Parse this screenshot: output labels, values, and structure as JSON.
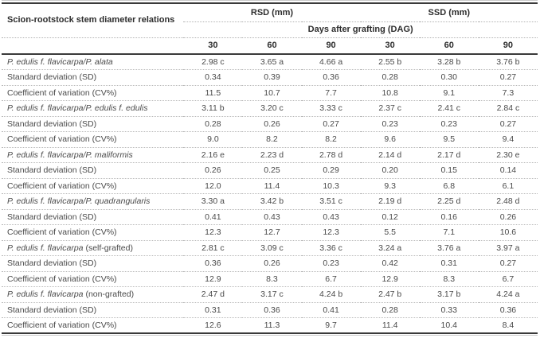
{
  "table": {
    "corner_header": "Scion-rootstock stem diameter relations",
    "group_headers": [
      "RSD (mm)",
      "SSD (mm)"
    ],
    "subheader": "Days after grafting (DAG)",
    "day_columns": [
      "30",
      "60",
      "90",
      "30",
      "60",
      "90"
    ],
    "rows": [
      {
        "label": "P. edulis f. flavicarpa/P. alata",
        "suffix": "",
        "italic": true,
        "cells": [
          "2.98 c",
          "3.65 a",
          "4.66 a",
          "2.55 b",
          "3.28 b",
          "3.76 b"
        ]
      },
      {
        "label": "Standard deviation (SD)",
        "suffix": "",
        "italic": false,
        "cells": [
          "0.34",
          "0.39",
          "0.36",
          "0.28",
          "0.30",
          "0.27"
        ]
      },
      {
        "label": "Coefficient of variation (CV%)",
        "suffix": "",
        "italic": false,
        "cells": [
          "11.5",
          "10.7",
          "7.7",
          "10.8",
          "9.1",
          "7.3"
        ]
      },
      {
        "label": "P. edulis f. flavicarpa/P. edulis f. edulis",
        "suffix": "",
        "italic": true,
        "cells": [
          "3.11 b",
          "3.20 c",
          "3.33 c",
          "2.37 c",
          "2.41 c",
          "2.84 c"
        ]
      },
      {
        "label": "Standard deviation (SD)",
        "suffix": "",
        "italic": false,
        "cells": [
          "0.28",
          "0.26",
          "0.27",
          "0.23",
          "0.23",
          "0.27"
        ]
      },
      {
        "label": "Coefficient of variation (CV%)",
        "suffix": "",
        "italic": false,
        "cells": [
          "9.0",
          "8.2",
          "8.2",
          "9.6",
          "9.5",
          "9.4"
        ]
      },
      {
        "label": "P. edulis f. flavicarpa/P. maliformis",
        "suffix": "",
        "italic": true,
        "cells": [
          "2.16 e",
          "2.23 d",
          "2.78 d",
          "2.14 d",
          "2.17 d",
          "2.30 e"
        ]
      },
      {
        "label": "Standard deviation (SD)",
        "suffix": "",
        "italic": false,
        "cells": [
          "0.26",
          "0.25",
          "0.29",
          "0.20",
          "0.15",
          "0.14"
        ]
      },
      {
        "label": "Coefficient of variation (CV%)",
        "suffix": "",
        "italic": false,
        "cells": [
          "12.0",
          "11.4",
          "10.3",
          "9.3",
          "6.8",
          "6.1"
        ]
      },
      {
        "label": "P. edulis f. flavicarpa/P. quadrangularis",
        "suffix": "",
        "italic": true,
        "cells": [
          "3.30 a",
          "3.42 b",
          "3.51 c",
          "2.19 d",
          "2.25 d",
          "2.48 d"
        ]
      },
      {
        "label": "Standard deviation (SD)",
        "suffix": "",
        "italic": false,
        "cells": [
          "0.41",
          "0.43",
          "0.43",
          "0.12",
          "0.16",
          "0.26"
        ]
      },
      {
        "label": "Coefficient of variation (CV%)",
        "suffix": "",
        "italic": false,
        "cells": [
          "12.3",
          "12.7",
          "12.3",
          "5.5",
          "7.1",
          "10.6"
        ]
      },
      {
        "label": "P. edulis f. flavicarpa",
        "suffix": " (self-grafted)",
        "italic": true,
        "cells": [
          "2.81 c",
          "3.09 c",
          "3.36 c",
          "3.24 a",
          "3.76 a",
          "3.97 a"
        ]
      },
      {
        "label": "Standard deviation (SD)",
        "suffix": "",
        "italic": false,
        "cells": [
          "0.36",
          "0.26",
          "0.23",
          "0.42",
          "0.31",
          "0.27"
        ]
      },
      {
        "label": "Coefficient of variation (CV%)",
        "suffix": "",
        "italic": false,
        "cells": [
          "12.9",
          "8.3",
          "6.7",
          "12.9",
          "8.3",
          "6.7"
        ]
      },
      {
        "label": "P. edulis f. flavicarpa",
        "suffix": " (non-grafted)",
        "italic": true,
        "cells": [
          "2.47 d",
          "3.17 c",
          "4.24 b",
          "2.47 b",
          "3.17 b",
          "4.24 a"
        ]
      },
      {
        "label": "Standard deviation (SD)",
        "suffix": "",
        "italic": false,
        "cells": [
          "0.31",
          "0.36",
          "0.41",
          "0.28",
          "0.33",
          "0.36"
        ]
      },
      {
        "label": "Coefficient of variation (CV%)",
        "suffix": "",
        "italic": false,
        "cells": [
          "12.6",
          "11.3",
          "9.7",
          "11.4",
          "10.4",
          "8.4"
        ]
      }
    ]
  },
  "colors": {
    "rule_dark": "#3a3a3a",
    "rule_light": "#c9c9c9",
    "row_divider": "#b9b9b9",
    "header_text": "#2d2d2d",
    "body_text": "#4a4a4a"
  }
}
